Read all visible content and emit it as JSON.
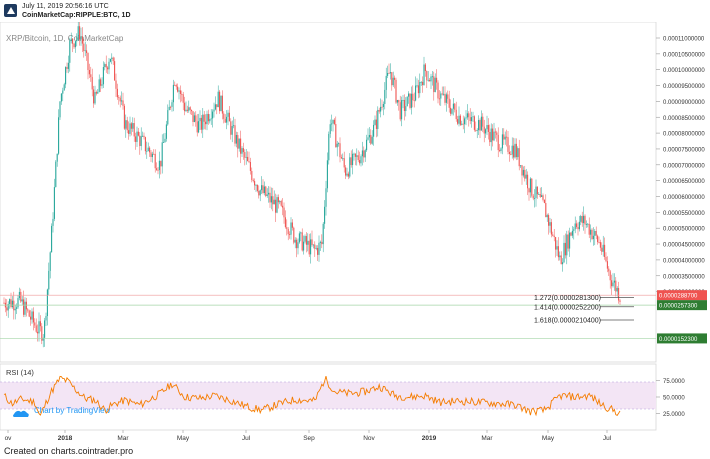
{
  "header": {
    "timestamp": "July 11, 2019 20:56:16 UTC",
    "symbol": "CoinMarketCap:RIPPLE:BTC, 1D"
  },
  "watermark": "XRP/Bitcoin, 1D, CoinMarketCap",
  "footer": "Created on charts.cointrader.pro",
  "tradingview_badge": "Chart by TradingView",
  "rsi_label": "RSI (14)",
  "price_axis_ticks": [
    "0.00011000000",
    "0.00010500000",
    "0.00010000000",
    "0.00009500000",
    "0.00009000000",
    "0.00008500000",
    "0.00008000000",
    "0.00007500000",
    "0.00007000000",
    "0.00006500000",
    "0.00006000000",
    "0.00005500000",
    "0.00005000000",
    "0.00004500000",
    "0.00004000000",
    "0.00003500000",
    "0.00003000000"
  ],
  "rsi_axis_ticks": [
    "75.0000",
    "50.0000",
    "25.0000"
  ],
  "time_axis": [
    "ov",
    "2018",
    "Mar",
    "May",
    "Jul",
    "Sep",
    "Nov",
    "2019",
    "Mar",
    "May",
    "Jul"
  ],
  "price_badges": [
    {
      "label": "0.0000288700",
      "color": "#ef5350"
    },
    {
      "label": "0.0000257300",
      "color": "#2e7d32"
    },
    {
      "label": "0.0000152300",
      "color": "#2e7d32"
    }
  ],
  "fib_levels": [
    {
      "label": "1.272(0.0000281300)",
      "price": 2.813e-05
    },
    {
      "label": "1.414(0.0000252200)",
      "price": 2.522e-05
    },
    {
      "label": "1.618(0.0000210400)",
      "price": 2.104e-05
    }
  ],
  "colors": {
    "up": "#26a69a",
    "down": "#ef5350",
    "rsi": "#f57c00",
    "rsi_band": "#f3e5f5"
  },
  "chart_data": {
    "type": "candlestick",
    "title": "XRP/Bitcoin, 1D, CoinMarketCap",
    "ylim": [
      1.5e-05,
      0.0001135
    ],
    "x": [
      "2017-11",
      "2017-12",
      "2018-01",
      "2018-02",
      "2018-03",
      "2018-04",
      "2018-05",
      "2018-06",
      "2018-07",
      "2018-08",
      "2018-09",
      "2018-10",
      "2018-11",
      "2018-12",
      "2019-01",
      "2019-02",
      "2019-03",
      "2019-04",
      "2019-05",
      "2019-06",
      "2019-07"
    ],
    "series": [
      {
        "values": [
          2.65e-05,
          1.75e-05,
          0.00011,
          9.5e-05,
          7.2e-05,
          9.2e-05,
          9.9e-05,
          8.2e-05,
          7.5e-05,
          5.6e-05,
          4.3e-05,
          7.1e-05,
          0.000105,
          9.4e-05,
          8.9e-05,
          8.5e-05,
          7.8e-05,
          6.8e-05,
          5.5e-05,
          4.4e-05,
          2.88e-05
        ]
      }
    ],
    "horizontal_lines": [
      2.887e-05,
      2.573e-05,
      1.523e-05
    ],
    "rsi": {
      "ylim": [
        0,
        100
      ],
      "bands": [
        30,
        70
      ],
      "ticks": [
        75,
        50,
        25
      ]
    }
  }
}
